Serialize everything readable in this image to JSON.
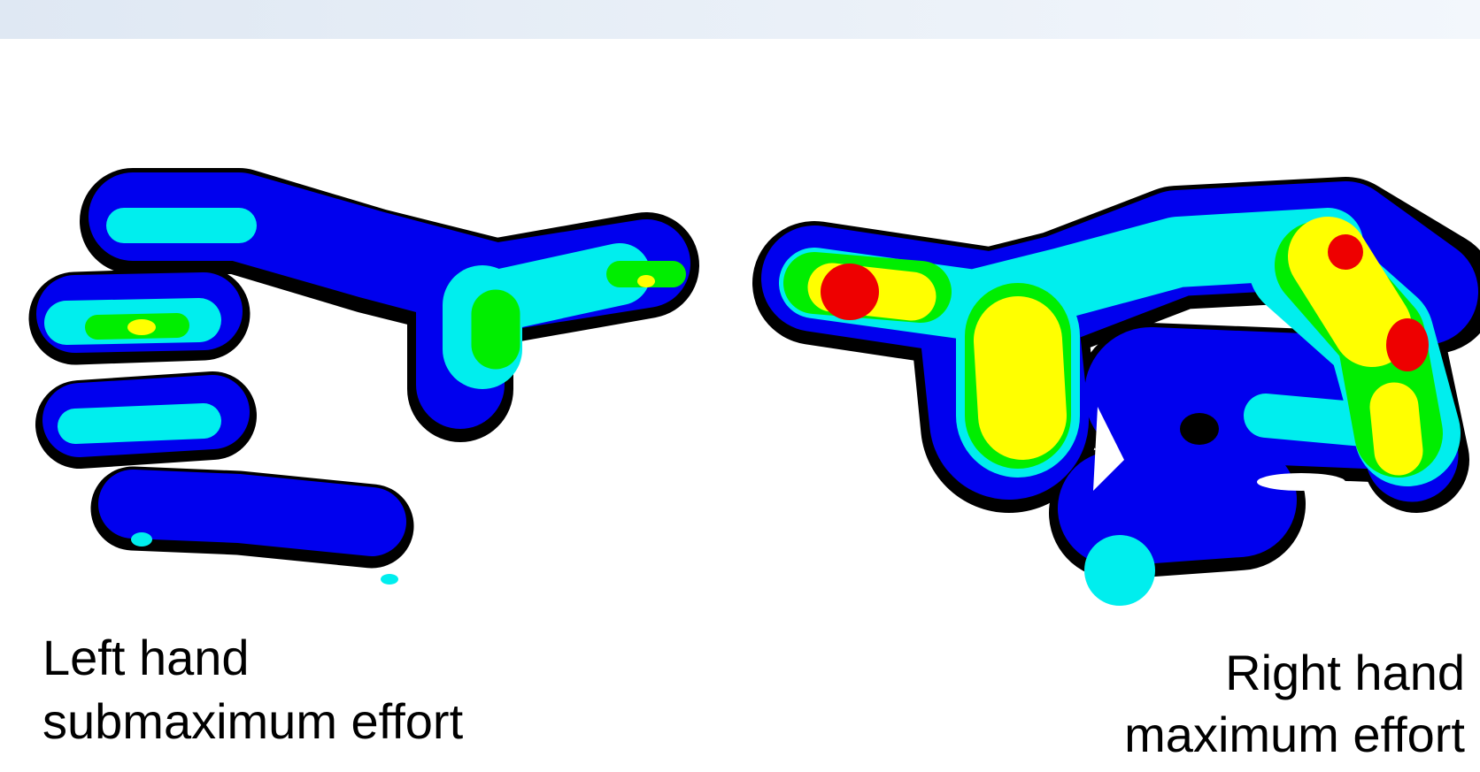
{
  "captions": {
    "left": [
      "Left hand",
      "submaximum effort"
    ],
    "right": [
      "Right hand",
      "maximum effort"
    ]
  }
}
